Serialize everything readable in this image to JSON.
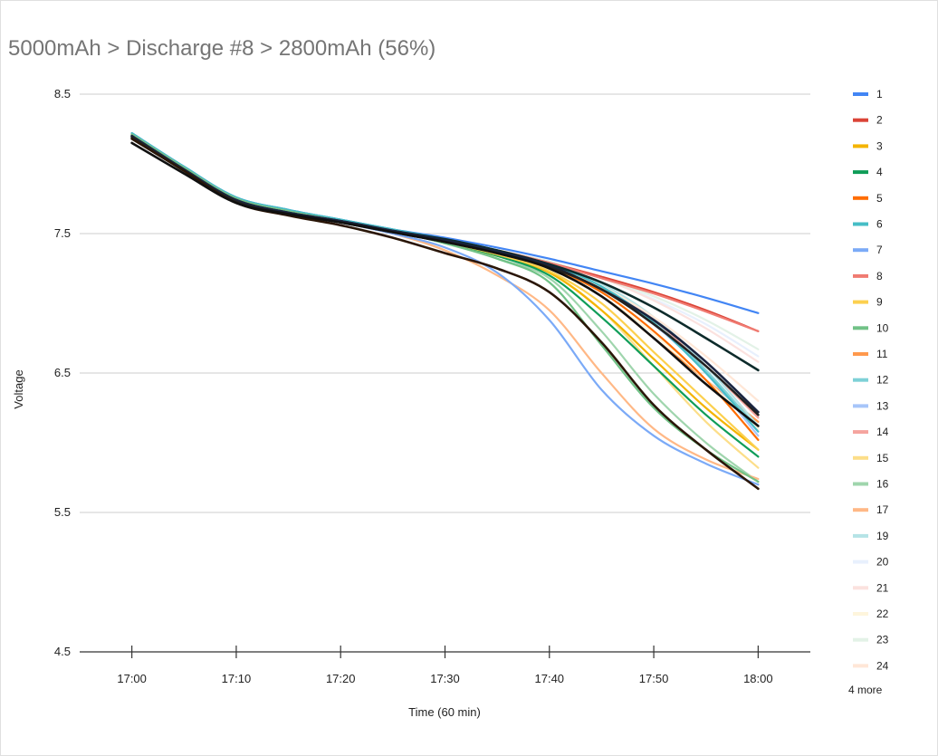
{
  "title": "5000mAh > Discharge #8 > 2800mAh (56%)",
  "chart_data": {
    "type": "line",
    "title": "5000mAh > Discharge #8 > 2800mAh (56%)",
    "xlabel": "Time (60 min)",
    "ylabel": "Voltage",
    "x": [
      0,
      5,
      10,
      15,
      20,
      25,
      30,
      35,
      40,
      45,
      50,
      55,
      60
    ],
    "x_ticks": [
      "17:00",
      "17:10",
      "17:20",
      "17:30",
      "17:40",
      "17:50",
      "18:00"
    ],
    "x_tick_values": [
      0,
      10,
      20,
      30,
      40,
      50,
      60
    ],
    "xlim": [
      -5,
      65
    ],
    "y_ticks": [
      "8.5",
      "7.5",
      "6.5",
      "5.5",
      "4.5"
    ],
    "ylim": [
      4.5,
      8.5
    ],
    "grid": true,
    "legend_position": "right",
    "legend_more": "4 more",
    "series": [
      {
        "name": "1",
        "color": "#4285f4",
        "values": [
          8.22,
          7.98,
          7.76,
          7.67,
          7.6,
          7.53,
          7.47,
          7.4,
          7.32,
          7.23,
          7.14,
          7.04,
          6.93
        ]
      },
      {
        "name": "2",
        "color": "#db4437",
        "values": [
          8.21,
          7.97,
          7.75,
          7.66,
          7.59,
          7.52,
          7.45,
          7.38,
          7.29,
          7.19,
          7.08,
          6.95,
          6.8
        ]
      },
      {
        "name": "3",
        "color": "#f4b400",
        "values": [
          8.2,
          7.97,
          7.75,
          7.66,
          7.59,
          7.52,
          7.44,
          7.34,
          7.22,
          6.95,
          6.6,
          6.25,
          5.95
        ]
      },
      {
        "name": "4",
        "color": "#0f9d58",
        "values": [
          8.2,
          7.97,
          7.75,
          7.66,
          7.59,
          7.52,
          7.44,
          7.34,
          7.2,
          6.9,
          6.55,
          6.2,
          5.9
        ]
      },
      {
        "name": "5",
        "color": "#ff6d01",
        "values": [
          8.21,
          7.97,
          7.75,
          7.66,
          7.59,
          7.52,
          7.45,
          7.37,
          7.26,
          7.08,
          6.8,
          6.45,
          6.02
        ]
      },
      {
        "name": "6",
        "color": "#46bdc6",
        "values": [
          8.22,
          7.98,
          7.76,
          7.67,
          7.6,
          7.53,
          7.46,
          7.38,
          7.28,
          7.12,
          6.86,
          6.5,
          6.08
        ]
      },
      {
        "name": "7",
        "color": "#7baaf7",
        "values": [
          8.21,
          7.97,
          7.75,
          7.65,
          7.58,
          7.5,
          7.4,
          7.22,
          6.88,
          6.38,
          6.05,
          5.85,
          5.7
        ]
      },
      {
        "name": "8",
        "color": "#f07b72",
        "values": [
          8.21,
          7.97,
          7.75,
          7.66,
          7.59,
          7.52,
          7.45,
          7.38,
          7.29,
          7.18,
          7.07,
          6.94,
          6.8
        ]
      },
      {
        "name": "9",
        "color": "#fcd04f",
        "values": [
          8.21,
          7.97,
          7.75,
          7.66,
          7.59,
          7.52,
          7.44,
          7.35,
          7.23,
          7.0,
          6.65,
          6.3,
          5.95
        ]
      },
      {
        "name": "10",
        "color": "#71c287",
        "values": [
          8.21,
          7.97,
          7.75,
          7.66,
          7.59,
          7.52,
          7.43,
          7.32,
          7.15,
          6.7,
          6.25,
          5.95,
          5.72
        ]
      },
      {
        "name": "11",
        "color": "#ff994d",
        "values": [
          8.21,
          7.97,
          7.75,
          7.66,
          7.59,
          7.52,
          7.44,
          7.35,
          7.25,
          7.05,
          6.75,
          6.45,
          6.15
        ]
      },
      {
        "name": "12",
        "color": "#7ed1d7",
        "values": [
          8.22,
          7.98,
          7.76,
          7.67,
          7.6,
          7.53,
          7.46,
          7.38,
          7.28,
          7.12,
          6.88,
          6.52,
          6.1
        ]
      },
      {
        "name": "13",
        "color": "#a7c5f9",
        "values": [
          8.21,
          7.97,
          7.75,
          7.66,
          7.59,
          7.52,
          7.45,
          7.37,
          7.27,
          7.1,
          6.85,
          6.5,
          6.05
        ]
      },
      {
        "name": "14",
        "color": "#f5a49e",
        "values": [
          8.21,
          7.97,
          7.75,
          7.66,
          7.59,
          7.52,
          7.45,
          7.37,
          7.28,
          7.12,
          6.88,
          6.55,
          6.18
        ]
      },
      {
        "name": "15",
        "color": "#fcde89",
        "values": [
          8.21,
          7.97,
          7.75,
          7.66,
          7.59,
          7.52,
          7.44,
          7.34,
          7.22,
          6.95,
          6.55,
          6.15,
          5.82
        ]
      },
      {
        "name": "16",
        "color": "#9fd5ad",
        "values": [
          8.21,
          7.97,
          7.75,
          7.66,
          7.59,
          7.52,
          7.43,
          7.32,
          7.18,
          6.8,
          6.35,
          6.0,
          5.72
        ]
      },
      {
        "name": "17",
        "color": "#ffb886",
        "values": [
          8.21,
          7.97,
          7.75,
          7.65,
          7.58,
          7.5,
          7.38,
          7.2,
          6.95,
          6.5,
          6.1,
          5.88,
          5.74
        ]
      },
      {
        "name": "19",
        "color": "#b5e3e6",
        "values": [
          8.22,
          7.98,
          7.76,
          7.67,
          7.6,
          7.53,
          7.46,
          7.38,
          7.29,
          7.14,
          6.9,
          6.55,
          6.12
        ]
      },
      {
        "name": "20",
        "color": "#e8f0fd",
        "values": [
          8.21,
          7.97,
          7.75,
          7.66,
          7.59,
          7.52,
          7.46,
          7.38,
          7.3,
          7.18,
          7.03,
          6.85,
          6.62
        ]
      },
      {
        "name": "21",
        "color": "#fbe2df",
        "values": [
          8.21,
          7.97,
          7.75,
          7.66,
          7.59,
          7.52,
          7.45,
          7.38,
          7.29,
          7.18,
          7.02,
          6.82,
          6.58
        ]
      },
      {
        "name": "22",
        "color": "#fef5dc",
        "values": [
          8.21,
          7.97,
          7.75,
          7.66,
          7.59,
          7.52,
          7.44,
          7.35,
          7.24,
          7.05,
          6.78,
          6.45,
          6.1
        ]
      },
      {
        "name": "23",
        "color": "#e3f2e7",
        "values": [
          8.21,
          7.97,
          7.75,
          7.66,
          7.59,
          7.52,
          7.46,
          7.38,
          7.3,
          7.18,
          7.05,
          6.88,
          6.67
        ]
      },
      {
        "name": "24",
        "color": "#ffe7d7",
        "values": [
          8.21,
          7.97,
          7.75,
          7.66,
          7.59,
          7.52,
          7.45,
          7.37,
          7.27,
          7.12,
          6.9,
          6.62,
          6.3
        ]
      },
      {
        "name": "",
        "color": "#0d2b2b",
        "values": [
          8.2,
          7.96,
          7.74,
          7.65,
          7.59,
          7.52,
          7.46,
          7.38,
          7.28,
          7.15,
          6.97,
          6.75,
          6.52
        ]
      },
      {
        "name": "",
        "color": "#1a2440",
        "values": [
          8.2,
          7.96,
          7.74,
          7.65,
          7.59,
          7.52,
          7.45,
          7.37,
          7.27,
          7.1,
          6.88,
          6.58,
          6.22
        ]
      },
      {
        "name": "",
        "color": "#222222",
        "values": [
          8.19,
          7.95,
          7.73,
          7.64,
          7.58,
          7.51,
          7.44,
          7.36,
          7.26,
          7.1,
          6.85,
          6.55,
          6.2
        ]
      },
      {
        "name": "",
        "color": "#2a1608",
        "values": [
          8.18,
          7.95,
          7.72,
          7.63,
          7.56,
          7.47,
          7.36,
          7.25,
          7.08,
          6.72,
          6.27,
          5.95,
          5.67
        ]
      },
      {
        "name": "",
        "color": "#101010",
        "values": [
          8.15,
          7.93,
          7.72,
          7.64,
          7.58,
          7.51,
          7.44,
          7.36,
          7.25,
          7.05,
          6.75,
          6.42,
          6.12
        ]
      }
    ]
  }
}
